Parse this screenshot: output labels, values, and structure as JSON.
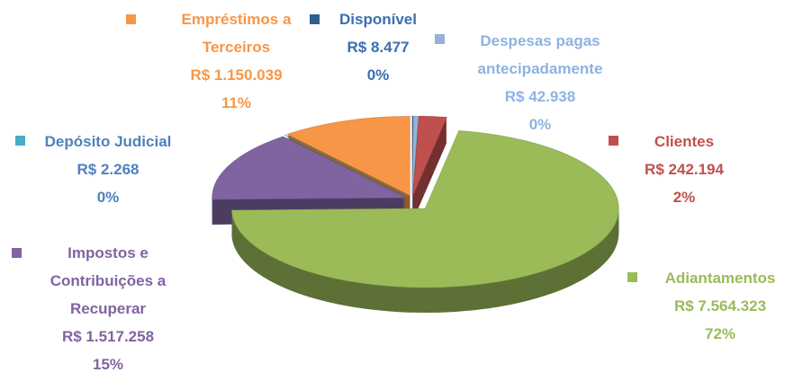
{
  "chart_data": {
    "type": "pie",
    "categories": [
      "Disponível",
      "Despesas pagas antecipadamente",
      "Clientes",
      "Adiantamentos",
      "Impostos e Contribuições a Recuperar",
      "Depósito Judicial",
      "Empréstimos a Terceiros"
    ],
    "values": [
      8477,
      42938,
      242194,
      7564323,
      1517258,
      2268,
      1150039
    ],
    "value_labels": [
      "R$ 8.477",
      "R$ 42.938",
      "R$ 242.194",
      "R$ 7.564.323",
      "R$ 1.517.258",
      "R$ 2.268",
      "R$ 1.150.039"
    ],
    "percent_labels": [
      "0%",
      "0%",
      "2%",
      "72%",
      "15%",
      "0%",
      "11%"
    ],
    "colors": [
      "#2f5f8f",
      "#95b3d7",
      "#c0504d",
      "#9bbb59",
      "#8064a2",
      "#4bacc6",
      "#f79646"
    ],
    "label_colors": [
      "#3a6fb0",
      "#8db3e2",
      "#c0504d",
      "#9bbb59",
      "#8064a2",
      "#4f81bd",
      "#f79646"
    ]
  }
}
